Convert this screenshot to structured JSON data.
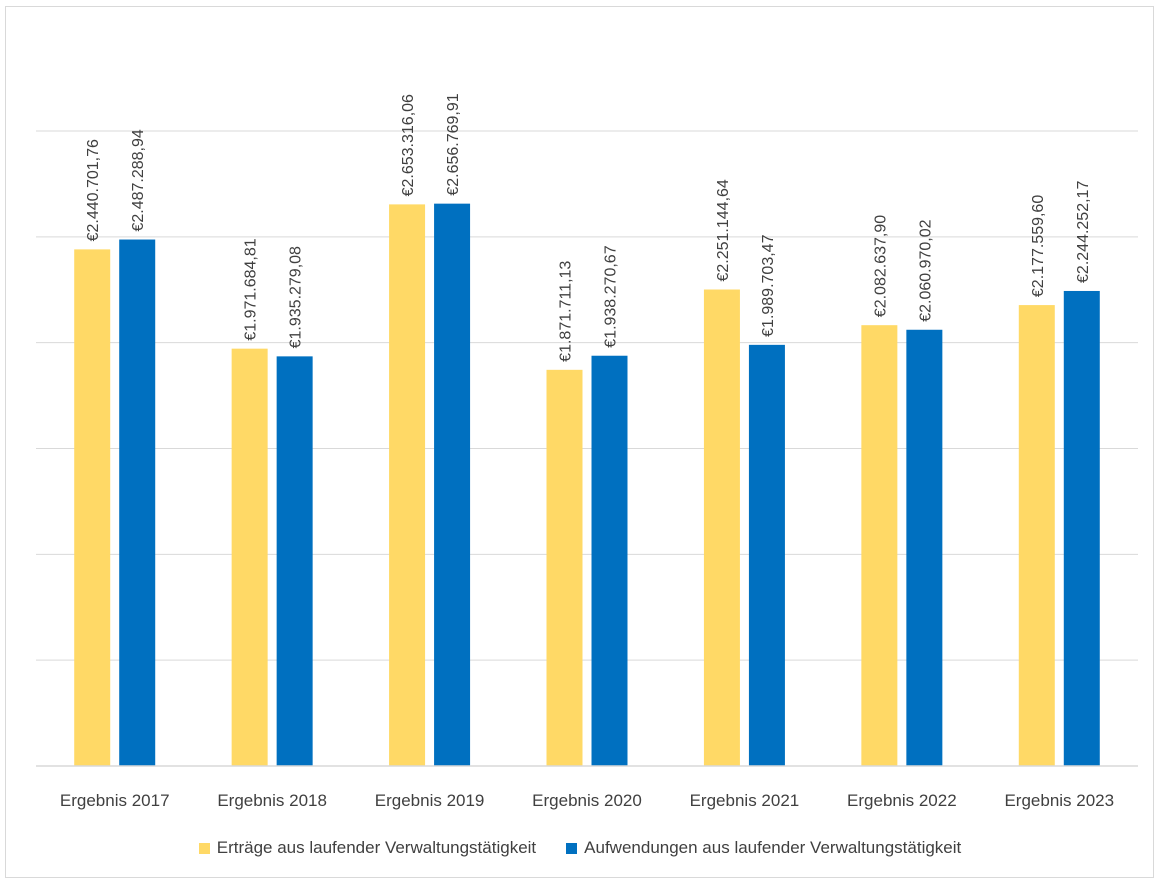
{
  "chart_data": {
    "type": "bar",
    "title": "",
    "xlabel": "",
    "ylabel": "",
    "ylim": [
      0,
      3000000
    ],
    "grid": true,
    "legend_position": "bottom",
    "categories": [
      "Ergebnis 2017",
      "Ergebnis 2018",
      "Ergebnis 2019",
      "Ergebnis 2020",
      "Ergebnis 2021",
      "Ergebnis 2022",
      "Ergebnis 2023"
    ],
    "series": [
      {
        "name": "Erträge aus laufender Verwaltungstätigkeit",
        "color": "#FFD966",
        "values": [
          2440701.76,
          1971684.81,
          2653316.06,
          1871711.13,
          2251144.64,
          2082637.9,
          2177559.6
        ],
        "labels": [
          "€2.440.701,76",
          "€1.971.684,81",
          "€2.653.316,06",
          "€1.871.711,13",
          "€2.251.144,64",
          "€2.082.637,90",
          "€2.177.559,60"
        ]
      },
      {
        "name": "Aufwendungen aus laufender Verwaltungstätigkeit",
        "color": "#0070C0",
        "values": [
          2487288.94,
          1935279.08,
          2656769.91,
          1938270.67,
          1989703.47,
          2060970.02,
          2244252.17
        ],
        "labels": [
          "€2.487.288,94",
          "€1.935.279,08",
          "€2.656.769,91",
          "€1.938.270,67",
          "€1.989.703,47",
          "€2.060.970,02",
          "€2.244.252,17"
        ]
      }
    ]
  }
}
